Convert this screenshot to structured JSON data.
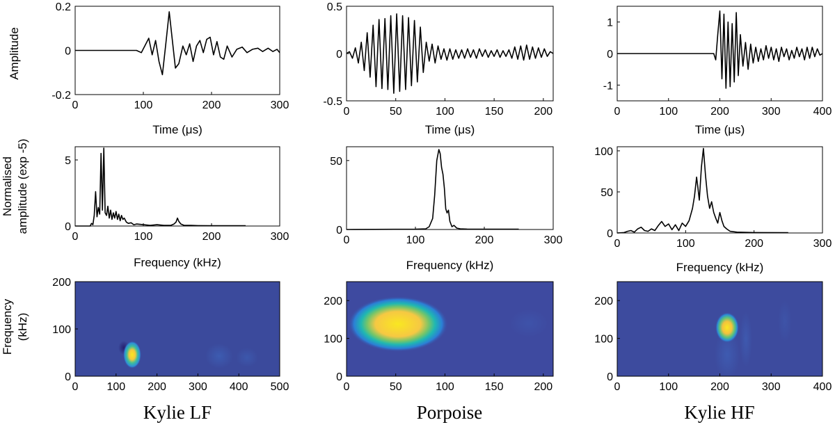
{
  "figure": {
    "row_labels": {
      "row1": "Amplitude",
      "row2_line1": "Normalised",
      "row2_line2": "amplitude (exp -5)",
      "row3_line1": "Frequency",
      "row3_line2": "(kHz)"
    },
    "columns": [
      {
        "caption": "Kylie LF"
      },
      {
        "caption": "Porpoise"
      },
      {
        "caption": "Kylie HF"
      }
    ]
  },
  "chart_data": [
    {
      "type": "line",
      "title": "",
      "xlabel": "Time (μs)",
      "ylabel": "Amplitude",
      "xlim": [
        0,
        300
      ],
      "ylim": [
        -0.2,
        0.2
      ],
      "xticks": [
        0,
        100,
        200,
        300
      ],
      "yticks": [
        -0.2,
        0,
        0.2
      ],
      "xtick_labels": [
        "0",
        "100",
        "200",
        "300"
      ],
      "ytick_labels": [
        "-0.2",
        "0",
        "0.2"
      ],
      "grid": false,
      "x": [
        0,
        60,
        90,
        97,
        102,
        108,
        113,
        118,
        123,
        128,
        133,
        138,
        142,
        147,
        152,
        158,
        163,
        168,
        173,
        178,
        183,
        188,
        193,
        198,
        203,
        208,
        213,
        218,
        223,
        230,
        237,
        245,
        252,
        260,
        268,
        275,
        283,
        290,
        296,
        300
      ],
      "y": [
        0,
        0,
        0,
        -0.01,
        0.02,
        0.055,
        -0.02,
        0.045,
        -0.05,
        -0.11,
        0.03,
        0.175,
        0.06,
        -0.08,
        -0.06,
        0.02,
        -0.02,
        0.03,
        -0.05,
        0.02,
        0.045,
        -0.01,
        0.05,
        0.06,
        -0.02,
        0.04,
        -0.03,
        -0.04,
        0.02,
        -0.03,
        0.005,
        0.015,
        -0.01,
        0.005,
        0.01,
        -0.005,
        0.01,
        -0.005,
        0.005,
        -0.01
      ]
    },
    {
      "type": "line",
      "title": "",
      "xlabel": "Time (μs)",
      "ylabel": "",
      "xlim": [
        0,
        210
      ],
      "ylim": [
        -0.5,
        0.5
      ],
      "xticks": [
        0,
        50,
        100,
        150,
        200
      ],
      "yticks": [
        -0.5,
        0,
        0.5
      ],
      "xtick_labels": [
        "0",
        "50",
        "100",
        "150",
        "200"
      ],
      "ytick_labels": [
        "-0.5",
        "0",
        "0.5"
      ],
      "grid": false,
      "x": [
        0,
        3,
        6,
        9,
        12,
        15,
        18,
        21,
        24,
        27,
        30,
        33,
        36,
        39,
        42,
        45,
        48,
        51,
        54,
        57,
        60,
        63,
        66,
        69,
        72,
        75,
        78,
        81,
        84,
        87,
        90,
        93,
        96,
        99,
        102,
        105,
        108,
        111,
        114,
        117,
        120,
        123,
        126,
        129,
        132,
        135,
        138,
        141,
        144,
        147,
        150,
        153,
        156,
        159,
        162,
        165,
        168,
        171,
        174,
        177,
        180,
        183,
        186,
        189,
        192,
        195,
        198,
        201,
        204,
        207,
        210
      ],
      "y": [
        0,
        0.02,
        -0.05,
        0.06,
        -0.1,
        0.12,
        -0.18,
        0.22,
        -0.25,
        0.3,
        -0.35,
        0.36,
        -0.37,
        0.37,
        -0.38,
        0.4,
        -0.42,
        0.42,
        -0.4,
        0.4,
        -0.38,
        0.38,
        -0.34,
        0.35,
        -0.3,
        0.28,
        -0.2,
        0.12,
        -0.08,
        0.1,
        -0.1,
        0.08,
        -0.06,
        0.05,
        -0.07,
        0.05,
        -0.06,
        0.04,
        -0.05,
        0.04,
        -0.05,
        0.05,
        -0.04,
        0.04,
        -0.05,
        0.05,
        -0.03,
        0.04,
        -0.04,
        0.03,
        -0.03,
        0.04,
        -0.04,
        0.03,
        -0.03,
        0.04,
        -0.05,
        0.07,
        -0.06,
        0.08,
        -0.07,
        0.09,
        -0.06,
        0.07,
        -0.05,
        0.06,
        -0.04,
        0.05,
        -0.03,
        0.02,
        0
      ]
    },
    {
      "type": "line",
      "title": "",
      "xlabel": "Time (μs)",
      "ylabel": "",
      "xlim": [
        0,
        400
      ],
      "ylim": [
        -1.5,
        1.5
      ],
      "xticks": [
        0,
        100,
        200,
        300,
        400
      ],
      "yticks": [
        -1,
        0,
        1
      ],
      "xtick_labels": [
        "0",
        "100",
        "200",
        "300",
        "400"
      ],
      "ytick_labels": [
        "-1",
        "0",
        "1"
      ],
      "grid": false,
      "x": [
        0,
        180,
        188,
        192,
        196,
        200,
        204,
        208,
        212,
        216,
        220,
        224,
        228,
        232,
        236,
        240,
        245,
        250,
        255,
        260,
        265,
        270,
        275,
        280,
        285,
        290,
        295,
        300,
        305,
        310,
        315,
        320,
        325,
        330,
        335,
        340,
        345,
        350,
        355,
        360,
        365,
        370,
        375,
        380,
        385,
        390,
        395,
        400
      ],
      "y": [
        0,
        0,
        0,
        -0.2,
        0.6,
        1.35,
        -0.8,
        1.25,
        -1.1,
        1.0,
        -1.05,
        0.95,
        -0.9,
        1.3,
        -0.7,
        0.6,
        -0.4,
        0.35,
        -0.5,
        0.3,
        -0.3,
        0.2,
        -0.25,
        0.15,
        -0.2,
        0.25,
        -0.15,
        0.2,
        -0.2,
        0.15,
        -0.25,
        0.2,
        -0.1,
        0.15,
        -0.2,
        0.1,
        -0.15,
        0.2,
        -0.1,
        0.15,
        -0.2,
        0.2,
        -0.15,
        0.2,
        -0.1,
        0.15,
        -0.05,
        0
      ]
    },
    {
      "type": "line",
      "title": "",
      "xlabel": "Frequency (kHz)",
      "ylabel": "Normalised amplitude (exp -5)",
      "xlim": [
        0,
        300
      ],
      "ylim": [
        0,
        6
      ],
      "xticks": [
        0,
        100,
        200,
        300
      ],
      "yticks": [
        0,
        5
      ],
      "xtick_labels": [
        "0",
        "100",
        "200",
        "300"
      ],
      "ytick_labels": [
        "0",
        "5"
      ],
      "grid": false,
      "x": [
        0,
        22,
        24,
        26,
        28,
        30,
        32,
        34,
        36,
        38,
        40,
        42,
        44,
        46,
        48,
        50,
        52,
        54,
        56,
        58,
        60,
        62,
        64,
        66,
        68,
        70,
        72,
        75,
        78,
        82,
        86,
        90,
        100,
        110,
        120,
        130,
        140,
        145,
        148,
        150,
        152,
        155,
        160,
        170,
        180,
        200,
        220,
        250
      ],
      "y": [
        0,
        0,
        0.2,
        0.1,
        0.8,
        2.6,
        0.7,
        1.4,
        0.9,
        5.5,
        1.2,
        5.9,
        1.0,
        0.8,
        1.5,
        0.6,
        1.2,
        0.5,
        1.0,
        0.6,
        1.1,
        0.5,
        0.9,
        0.4,
        0.8,
        0.5,
        0.6,
        0.3,
        0.2,
        0.25,
        0.1,
        0.15,
        0.1,
        0.05,
        0.1,
        0.05,
        0.05,
        0.15,
        0.3,
        0.6,
        0.35,
        0.15,
        0.05,
        0.05,
        0.03,
        0.02,
        0.02,
        0.02
      ]
    },
    {
      "type": "line",
      "title": "",
      "xlabel": "Frequency (kHz)",
      "ylabel": "",
      "xlim": [
        0,
        300
      ],
      "ylim": [
        0,
        60
      ],
      "xticks": [
        0,
        100,
        200,
        300
      ],
      "yticks": [
        0,
        50
      ],
      "xtick_labels": [
        "0",
        "100",
        "200",
        "300"
      ],
      "ytick_labels": [
        "0",
        "50"
      ],
      "grid": false,
      "x": [
        0,
        100,
        115,
        120,
        125,
        128,
        131,
        134,
        136,
        138,
        140,
        142,
        144,
        146,
        148,
        150,
        153,
        156,
        160,
        165,
        175,
        200,
        250
      ],
      "y": [
        0,
        0.2,
        0.5,
        2,
        8,
        25,
        50,
        58,
        55,
        45,
        40,
        30,
        15,
        12,
        14,
        6,
        2,
        3,
        1,
        0.5,
        0.3,
        0.2,
        0.2
      ]
    },
    {
      "type": "line",
      "title": "",
      "xlabel": "Frequency (kHz)",
      "ylabel": "",
      "xlim": [
        0,
        300
      ],
      "ylim": [
        0,
        105
      ],
      "xticks": [
        0,
        100,
        200,
        300
      ],
      "yticks": [
        0,
        50,
        100
      ],
      "xtick_labels": [
        "0",
        "100",
        "200",
        "300"
      ],
      "ytick_labels": [
        "0",
        "50",
        "100"
      ],
      "grid": false,
      "x": [
        0,
        10,
        15,
        20,
        25,
        30,
        35,
        40,
        45,
        50,
        55,
        60,
        65,
        70,
        75,
        80,
        85,
        90,
        95,
        100,
        105,
        110,
        113,
        116,
        118,
        120,
        123,
        126,
        129,
        132,
        135,
        138,
        141,
        144,
        147,
        150,
        153,
        156,
        160,
        165,
        175,
        200,
        250
      ],
      "y": [
        0,
        0.5,
        2,
        3,
        1,
        5,
        7,
        3,
        2,
        5,
        3,
        9,
        14,
        8,
        11,
        4,
        10,
        3,
        12,
        8,
        15,
        30,
        45,
        68,
        55,
        40,
        80,
        103,
        70,
        45,
        30,
        38,
        25,
        18,
        12,
        25,
        15,
        8,
        5,
        2,
        1,
        0.5,
        0.3
      ]
    },
    {
      "type": "heatmap",
      "title": "",
      "xlabel": "",
      "ylabel": "Frequency (kHz)",
      "xlim": [
        0,
        500
      ],
      "ylim": [
        0,
        200
      ],
      "xticks": [
        0,
        100,
        200,
        300,
        400,
        500
      ],
      "yticks": [
        0,
        100,
        200
      ],
      "xtick_labels": [
        "0",
        "100",
        "200",
        "300",
        "400",
        "500"
      ],
      "ytick_labels": [
        "0",
        "100",
        "200"
      ],
      "grid": false,
      "colormap": "parula",
      "background_color": "#3b4a9c",
      "peak": {
        "x": 140,
        "y": 45,
        "level": "max"
      }
    },
    {
      "type": "heatmap",
      "title": "",
      "xlabel": "",
      "ylabel": "",
      "xlim": [
        0,
        210
      ],
      "ylim": [
        0,
        250
      ],
      "xticks": [
        0,
        50,
        100,
        150,
        200
      ],
      "yticks": [
        0,
        100,
        200
      ],
      "xtick_labels": [
        "0",
        "50",
        "100",
        "150",
        "200"
      ],
      "ytick_labels": [
        "0",
        "100",
        "200"
      ],
      "grid": false,
      "colormap": "parula",
      "background_color": "#3e4aa0",
      "peak": {
        "x": 55,
        "y": 135,
        "level": "max"
      }
    },
    {
      "type": "heatmap",
      "title": "",
      "xlabel": "",
      "ylabel": "",
      "xlim": [
        0,
        400
      ],
      "ylim": [
        0,
        250
      ],
      "xticks": [
        0,
        100,
        200,
        300,
        400
      ],
      "yticks": [
        0,
        100,
        200
      ],
      "xtick_labels": [
        "0",
        "100",
        "200",
        "300",
        "400"
      ],
      "ytick_labels": [
        "0",
        "100",
        "200"
      ],
      "grid": false,
      "colormap": "parula",
      "background_color": "#3d4b9e",
      "peak": {
        "x": 212,
        "y": 130,
        "level": "max"
      }
    }
  ]
}
